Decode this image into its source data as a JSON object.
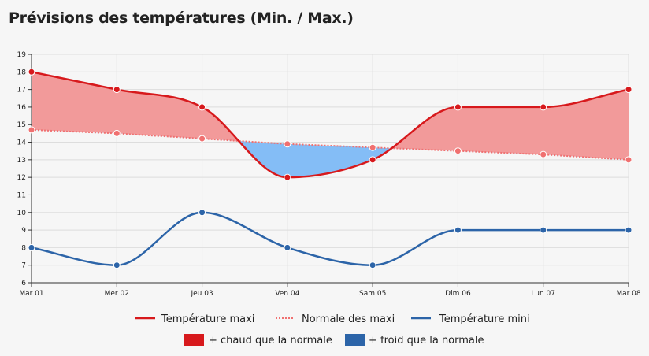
{
  "title": "Prévisions des températures (Min. / Max.)",
  "chart_data": {
    "type": "line",
    "categories": [
      "Mar 01",
      "Mer 02",
      "Jeu 03",
      "Ven 04",
      "Sam 05",
      "Dim 06",
      "Lun 07",
      "Mar 08"
    ],
    "series": [
      {
        "name": "Température maxi",
        "values": [
          18,
          17,
          16,
          12,
          13,
          16,
          16,
          17
        ],
        "color": "#d7191c",
        "style": "solid"
      },
      {
        "name": "Normale des maxi",
        "values": [
          14.7,
          14.5,
          14.2,
          13.9,
          13.7,
          13.5,
          13.3,
          13.0
        ],
        "color": "#f07070",
        "style": "dotted"
      },
      {
        "name": "Température mini",
        "values": [
          8,
          7,
          10,
          8,
          7,
          9,
          9,
          9
        ],
        "color": "#2c64a8",
        "style": "solid"
      }
    ],
    "areas": [
      {
        "name": "+ chaud que la normale",
        "color": "#f29a9a",
        "legend_color": "#d7191c"
      },
      {
        "name": "+ froid que la normale",
        "color": "#84bdf6",
        "legend_color": "#2c64a8"
      }
    ],
    "ylim": [
      6,
      19
    ],
    "yticks": [
      6,
      7,
      8,
      9,
      10,
      11,
      12,
      13,
      14,
      15,
      16,
      17,
      18,
      19
    ],
    "xlabel": "",
    "ylabel": "",
    "grid": true
  }
}
